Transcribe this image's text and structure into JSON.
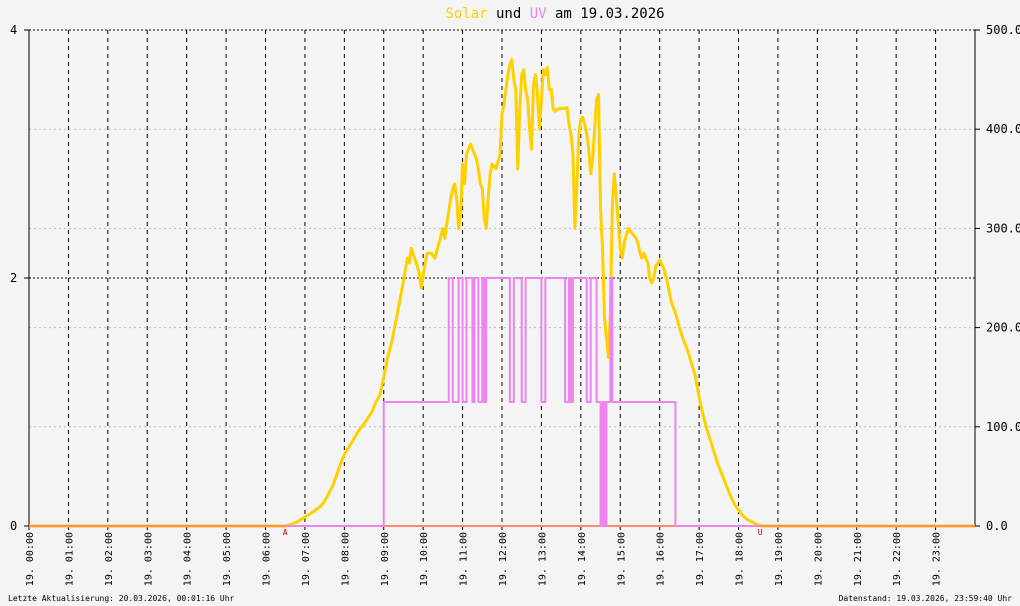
{
  "title": {
    "part1": "Solar",
    "part2": " und ",
    "part3": "UV",
    "part4": " am 19.03.2026"
  },
  "colors": {
    "solar": "#ffd000",
    "uv": "#ee82ee",
    "title_text": "#000000",
    "background": "#f4f4f4",
    "axis": "#000000",
    "baseline": "#ff8c64",
    "marker": "#cc0000"
  },
  "footer": {
    "left": "Letzte Aktualisierung: 20.03.2026, 00:01:16 Uhr",
    "right": "Datenstand: 19.03.2026, 23:59:40 Uhr"
  },
  "markers": {
    "sunrise_label": "A",
    "sunrise_hour": 6.5,
    "sunset_label": "U",
    "sunset_hour": 18.55
  },
  "chart_data": {
    "type": "line",
    "x_unit": "hour of day",
    "xlim": [
      0,
      24
    ],
    "x_ticks": [
      "19. 00:00",
      "19. 01:00",
      "19. 02:00",
      "19. 03:00",
      "19. 04:00",
      "19. 05:00",
      "19. 06:00",
      "19. 07:00",
      "19. 08:00",
      "19. 09:00",
      "19. 10:00",
      "19. 11:00",
      "19. 12:00",
      "19. 13:00",
      "19. 14:00",
      "19. 15:00",
      "19. 16:00",
      "19. 17:00",
      "19. 18:00",
      "19. 19:00",
      "19. 20:00",
      "19. 21:00",
      "19. 22:00",
      "19. 23:00"
    ],
    "y_left": {
      "lim": [
        0,
        4
      ],
      "ticks": [
        "0",
        "2",
        "4"
      ]
    },
    "y_right": {
      "lim": [
        0,
        500
      ],
      "ticks": [
        "0.0",
        "100.0",
        "200.0",
        "300.0",
        "400.0",
        "500.0"
      ]
    },
    "grid": true,
    "series": [
      {
        "name": "Solar",
        "axis": "right",
        "color": "#ffd000",
        "points": [
          [
            0,
            0
          ],
          [
            6.5,
            0
          ],
          [
            6.6,
            1
          ],
          [
            6.8,
            4
          ],
          [
            7.0,
            9
          ],
          [
            7.2,
            14
          ],
          [
            7.4,
            20
          ],
          [
            7.5,
            25
          ],
          [
            7.7,
            40
          ],
          [
            7.9,
            62
          ],
          [
            8.0,
            72
          ],
          [
            8.2,
            85
          ],
          [
            8.3,
            92
          ],
          [
            8.4,
            98
          ],
          [
            8.5,
            103
          ],
          [
            8.7,
            115
          ],
          [
            8.8,
            125
          ],
          [
            8.9,
            132
          ],
          [
            9.0,
            150
          ],
          [
            9.1,
            170
          ],
          [
            9.2,
            185
          ],
          [
            9.35,
            215
          ],
          [
            9.5,
            247
          ],
          [
            9.6,
            270
          ],
          [
            9.65,
            265
          ],
          [
            9.7,
            280
          ],
          [
            9.8,
            268
          ],
          [
            9.85,
            262
          ],
          [
            9.9,
            255
          ],
          [
            9.95,
            240
          ],
          [
            10.05,
            265
          ],
          [
            10.1,
            275
          ],
          [
            10.2,
            275
          ],
          [
            10.3,
            270
          ],
          [
            10.4,
            285
          ],
          [
            10.5,
            300
          ],
          [
            10.55,
            290
          ],
          [
            10.6,
            305
          ],
          [
            10.7,
            330
          ],
          [
            10.75,
            340
          ],
          [
            10.8,
            345
          ],
          [
            10.85,
            330
          ],
          [
            10.9,
            300
          ],
          [
            10.95,
            315
          ],
          [
            11.0,
            365
          ],
          [
            11.05,
            345
          ],
          [
            11.1,
            375
          ],
          [
            11.15,
            380
          ],
          [
            11.2,
            385
          ],
          [
            11.25,
            380
          ],
          [
            11.3,
            375
          ],
          [
            11.35,
            370
          ],
          [
            11.4,
            360
          ],
          [
            11.45,
            345
          ],
          [
            11.5,
            340
          ],
          [
            11.55,
            310
          ],
          [
            11.6,
            300
          ],
          [
            11.65,
            330
          ],
          [
            11.7,
            355
          ],
          [
            11.75,
            365
          ],
          [
            11.85,
            360
          ],
          [
            11.95,
            375
          ],
          [
            12.0,
            415
          ],
          [
            12.05,
            425
          ],
          [
            12.1,
            440
          ],
          [
            12.15,
            455
          ],
          [
            12.2,
            465
          ],
          [
            12.25,
            470
          ],
          [
            12.3,
            450
          ],
          [
            12.35,
            440
          ],
          [
            12.4,
            360
          ],
          [
            12.45,
            420
          ],
          [
            12.5,
            455
          ],
          [
            12.55,
            460
          ],
          [
            12.6,
            440
          ],
          [
            12.65,
            430
          ],
          [
            12.7,
            400
          ],
          [
            12.75,
            380
          ],
          [
            12.8,
            445
          ],
          [
            12.85,
            455
          ],
          [
            12.9,
            435
          ],
          [
            12.95,
            400
          ],
          [
            13.0,
            430
          ],
          [
            13.05,
            460
          ],
          [
            13.1,
            455
          ],
          [
            13.15,
            462
          ],
          [
            13.2,
            440
          ],
          [
            13.25,
            440
          ],
          [
            13.3,
            420
          ],
          [
            13.35,
            418
          ],
          [
            13.4,
            420
          ],
          [
            13.5,
            421
          ],
          [
            13.6,
            421
          ],
          [
            13.65,
            422
          ],
          [
            13.7,
            405
          ],
          [
            13.75,
            395
          ],
          [
            13.8,
            375
          ],
          [
            13.85,
            300
          ],
          [
            13.9,
            345
          ],
          [
            13.95,
            395
          ],
          [
            14.0,
            410
          ],
          [
            14.05,
            412
          ],
          [
            14.1,
            405
          ],
          [
            14.15,
            395
          ],
          [
            14.2,
            380
          ],
          [
            14.25,
            355
          ],
          [
            14.3,
            370
          ],
          [
            14.35,
            400
          ],
          [
            14.4,
            430
          ],
          [
            14.45,
            435
          ],
          [
            14.5,
            320
          ],
          [
            14.55,
            280
          ],
          [
            14.6,
            210
          ],
          [
            14.7,
            170
          ],
          [
            14.75,
            215
          ],
          [
            14.8,
            325
          ],
          [
            14.85,
            355
          ],
          [
            14.9,
            330
          ],
          [
            14.95,
            305
          ],
          [
            15.0,
            280
          ],
          [
            15.05,
            270
          ],
          [
            15.1,
            285
          ],
          [
            15.2,
            300
          ],
          [
            15.3,
            295
          ],
          [
            15.4,
            290
          ],
          [
            15.45,
            285
          ],
          [
            15.5,
            275
          ],
          [
            15.55,
            270
          ],
          [
            15.6,
            275
          ],
          [
            15.65,
            270
          ],
          [
            15.7,
            265
          ],
          [
            15.75,
            250
          ],
          [
            15.8,
            245
          ],
          [
            15.85,
            250
          ],
          [
            15.9,
            262
          ],
          [
            16.0,
            268
          ],
          [
            16.1,
            260
          ],
          [
            16.2,
            245
          ],
          [
            16.3,
            225
          ],
          [
            16.4,
            215
          ],
          [
            16.5,
            200
          ],
          [
            16.6,
            188
          ],
          [
            16.7,
            178
          ],
          [
            16.8,
            165
          ],
          [
            16.9,
            152
          ],
          [
            17.0,
            130
          ],
          [
            17.1,
            112
          ],
          [
            17.2,
            97
          ],
          [
            17.3,
            85
          ],
          [
            17.4,
            72
          ],
          [
            17.5,
            60
          ],
          [
            17.6,
            50
          ],
          [
            17.7,
            40
          ],
          [
            17.8,
            30
          ],
          [
            17.9,
            22
          ],
          [
            18.0,
            16
          ],
          [
            18.1,
            11
          ],
          [
            18.2,
            7
          ],
          [
            18.35,
            4
          ],
          [
            18.5,
            1
          ],
          [
            18.6,
            0
          ],
          [
            24,
            0
          ]
        ]
      },
      {
        "name": "UV",
        "axis": "left",
        "color": "#ee82ee",
        "points": [
          [
            0,
            0
          ],
          [
            9.0,
            0
          ],
          [
            9.0,
            1
          ],
          [
            10.65,
            1
          ],
          [
            10.65,
            2
          ],
          [
            10.75,
            2
          ],
          [
            10.75,
            1
          ],
          [
            10.9,
            1
          ],
          [
            10.9,
            2
          ],
          [
            11.0,
            2
          ],
          [
            11.0,
            1
          ],
          [
            11.1,
            1
          ],
          [
            11.1,
            2
          ],
          [
            11.25,
            2
          ],
          [
            11.25,
            1
          ],
          [
            11.3,
            1
          ],
          [
            11.3,
            2
          ],
          [
            11.4,
            2
          ],
          [
            11.4,
            1
          ],
          [
            11.5,
            1
          ],
          [
            11.5,
            2
          ],
          [
            11.55,
            2
          ],
          [
            11.55,
            1
          ],
          [
            11.6,
            1
          ],
          [
            11.6,
            2
          ],
          [
            12.2,
            2
          ],
          [
            12.2,
            1
          ],
          [
            12.3,
            1
          ],
          [
            12.3,
            2
          ],
          [
            12.5,
            2
          ],
          [
            12.5,
            1
          ],
          [
            12.6,
            1
          ],
          [
            12.6,
            2
          ],
          [
            13.0,
            2
          ],
          [
            13.0,
            1
          ],
          [
            13.1,
            1
          ],
          [
            13.1,
            2
          ],
          [
            13.6,
            2
          ],
          [
            13.6,
            1
          ],
          [
            13.7,
            1
          ],
          [
            13.7,
            2
          ],
          [
            13.75,
            2
          ],
          [
            13.75,
            1
          ],
          [
            13.8,
            1
          ],
          [
            13.8,
            2
          ],
          [
            14.15,
            2
          ],
          [
            14.15,
            1
          ],
          [
            14.25,
            1
          ],
          [
            14.25,
            2
          ],
          [
            14.4,
            2
          ],
          [
            14.4,
            1
          ],
          [
            14.5,
            1
          ],
          [
            14.5,
            0
          ],
          [
            14.55,
            0
          ],
          [
            14.55,
            1
          ],
          [
            14.6,
            1
          ],
          [
            14.6,
            0
          ],
          [
            14.65,
            0
          ],
          [
            14.65,
            1
          ],
          [
            14.75,
            1
          ],
          [
            14.75,
            2
          ],
          [
            14.8,
            2
          ],
          [
            14.8,
            1
          ],
          [
            16.4,
            1
          ],
          [
            16.4,
            0
          ],
          [
            24,
            0
          ]
        ]
      }
    ]
  }
}
